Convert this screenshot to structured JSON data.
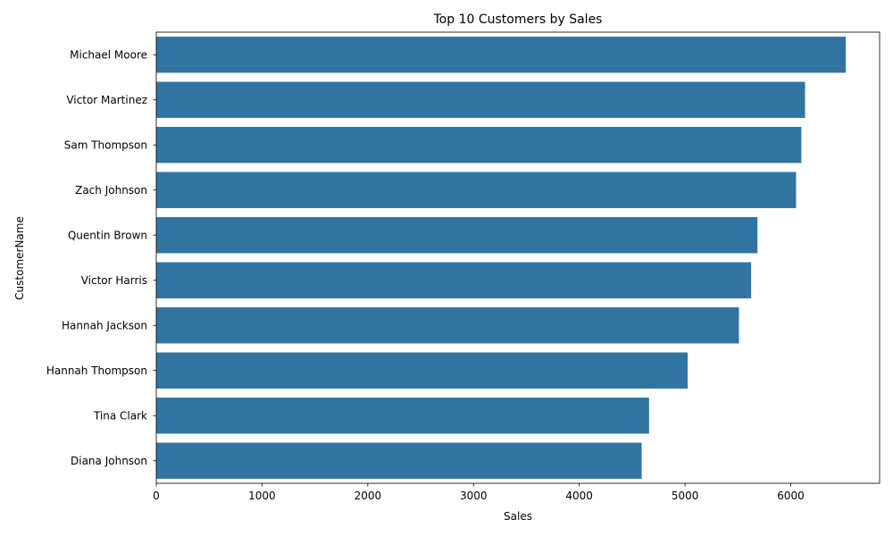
{
  "chart_data": {
    "type": "bar",
    "orientation": "horizontal",
    "title": "Top 10 Customers by Sales",
    "xlabel": "Sales",
    "ylabel": "CustomerName",
    "categories": [
      "Michael Moore",
      "Victor Martinez",
      "Sam Thompson",
      "Zach Johnson",
      "Quentin Brown",
      "Victor Harris",
      "Hannah Jackson",
      "Hannah Thompson",
      "Tina Clark",
      "Diana Johnson"
    ],
    "values": [
      6520,
      6135,
      6100,
      6050,
      5685,
      5625,
      5510,
      5025,
      4660,
      4590
    ],
    "xlim": [
      0,
      6840
    ],
    "xticks": [
      0,
      1000,
      2000,
      3000,
      4000,
      5000,
      6000
    ],
    "grid": false,
    "legend": "none",
    "bar_color": "#3274a1"
  }
}
